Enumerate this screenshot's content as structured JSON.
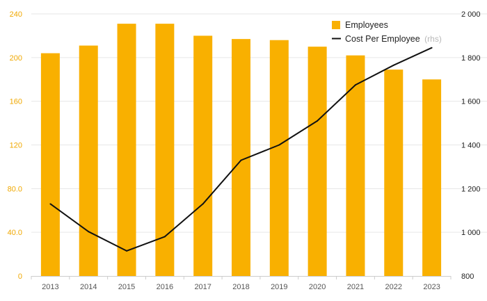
{
  "chart_data": {
    "type": "bar",
    "categories": [
      "2013",
      "2014",
      "2015",
      "2016",
      "2017",
      "2018",
      "2019",
      "2020",
      "2021",
      "2022",
      "2023"
    ],
    "series": [
      {
        "name": "Employees",
        "type": "bar",
        "axis": "left",
        "values": [
          204,
          211,
          231,
          231,
          220,
          217,
          216,
          210,
          202,
          189,
          180
        ]
      },
      {
        "name": "Cost Per Employee",
        "name_suffix": "(rhs)",
        "type": "line",
        "axis": "right",
        "values": [
          1130,
          1003,
          915,
          980,
          1130,
          1330,
          1400,
          1510,
          1675,
          1765,
          1845
        ]
      }
    ],
    "y_left": {
      "ylim": [
        0,
        240
      ],
      "ticks": [
        0,
        40,
        80,
        120,
        160,
        200,
        240
      ],
      "tick_labels": [
        "0",
        "40.0",
        "80.0",
        "120",
        "160",
        "200",
        "240"
      ]
    },
    "y_right": {
      "ylim": [
        800,
        2000
      ],
      "ticks": [
        800,
        1000,
        1200,
        1400,
        1600,
        1800,
        2000
      ],
      "tick_labels": [
        "800",
        "1 000",
        "1 200",
        "1 400",
        "1 600",
        "1 800",
        "2 000"
      ]
    },
    "grid": true,
    "legend_position": "top-right",
    "colors": {
      "bar": "#f9b000",
      "line": "#111111",
      "grid": "#e6e6e6",
      "left_ticks": "#f0a800"
    }
  }
}
